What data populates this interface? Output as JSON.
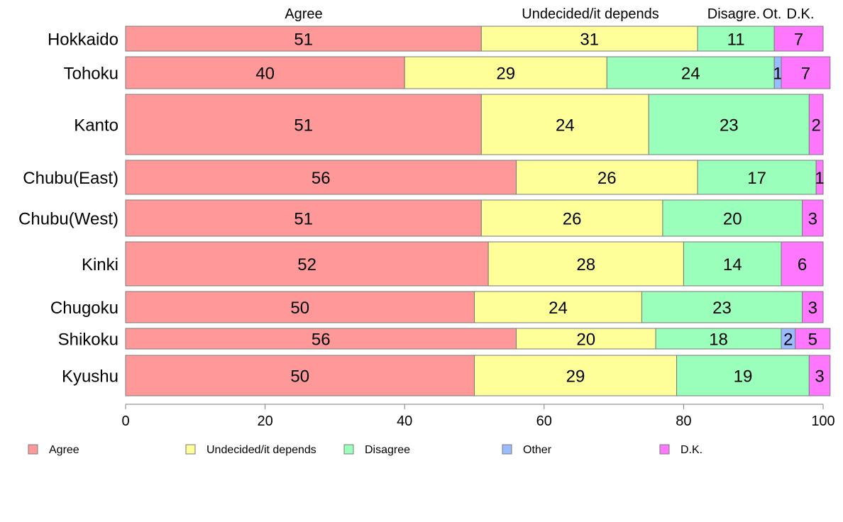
{
  "chart_data": {
    "type": "bar",
    "orientation": "horizontal",
    "stacked": true,
    "percent": true,
    "categories": [
      "Hokkaido",
      "Tohoku",
      "Kanto",
      "Chubu(East)",
      "Chubu(West)",
      "Kinki",
      "Chugoku",
      "Shikoku",
      "Kyushu"
    ],
    "series": [
      {
        "name": "Agree",
        "color": "#ff9999",
        "values": [
          51,
          40,
          51,
          56,
          51,
          52,
          50,
          56,
          50
        ]
      },
      {
        "name": "Undecided/it depends",
        "color": "#ffff99",
        "values": [
          31,
          29,
          24,
          26,
          26,
          28,
          24,
          20,
          29
        ]
      },
      {
        "name": "Disagree",
        "color": "#99ffbb",
        "values": [
          11,
          24,
          23,
          17,
          20,
          14,
          23,
          18,
          19
        ]
      },
      {
        "name": "Other",
        "color": "#99bbff",
        "values": [
          0,
          1,
          0,
          0,
          0,
          0,
          0,
          2,
          0
        ]
      },
      {
        "name": "D.K.",
        "color": "#ff77ff",
        "values": [
          7,
          7,
          2,
          1,
          3,
          6,
          3,
          5,
          3
        ]
      }
    ],
    "column_headers": [
      "Agree",
      "Undecided/it depends",
      "Disagre.",
      "Ot.",
      "D.K."
    ],
    "xlim": [
      0,
      100
    ],
    "xticks": [
      "0",
      "20",
      "40",
      "60",
      "80",
      "100"
    ],
    "legend_position": "bottom",
    "grid": false
  }
}
